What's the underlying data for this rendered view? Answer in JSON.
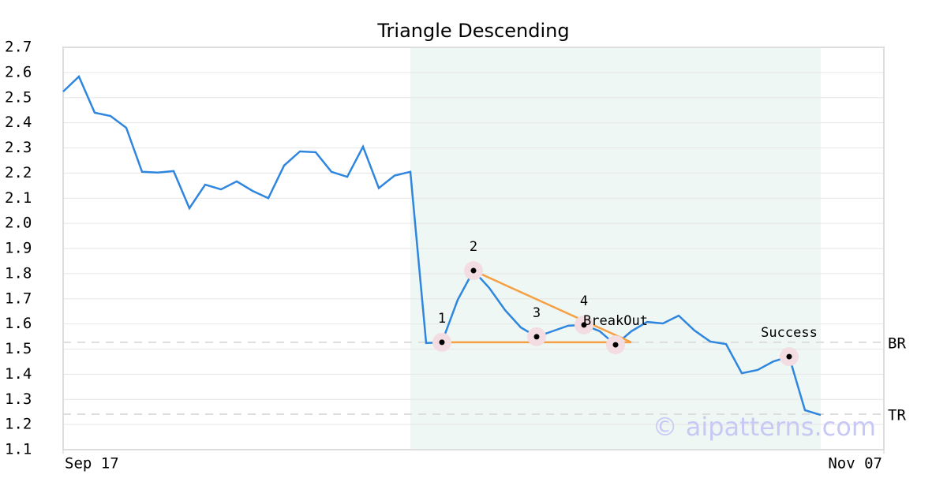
{
  "chart_data": {
    "type": "line",
    "title": "Triangle Descending",
    "x": [
      0,
      1,
      2,
      3,
      4,
      5,
      6,
      7,
      8,
      9,
      10,
      11,
      12,
      13,
      14,
      15,
      16,
      17,
      18,
      19,
      20,
      21,
      22,
      23,
      24,
      25,
      26,
      27,
      28,
      29,
      30,
      31,
      32,
      33,
      34,
      35,
      36,
      37,
      38,
      39,
      40,
      41,
      42,
      43,
      44,
      45,
      46,
      47,
      48
    ],
    "values": [
      2.524,
      2.584,
      2.44,
      2.427,
      2.38,
      2.205,
      2.202,
      2.208,
      2.06,
      2.154,
      2.135,
      2.167,
      2.129,
      2.1,
      2.23,
      2.286,
      2.283,
      2.205,
      2.185,
      2.305,
      2.14,
      2.19,
      2.205,
      1.524,
      1.527,
      1.696,
      1.812,
      1.743,
      1.655,
      1.586,
      1.549,
      1.571,
      1.593,
      1.596,
      1.571,
      1.517,
      1.571,
      1.608,
      1.602,
      1.633,
      1.574,
      1.53,
      1.52,
      1.404,
      1.417,
      1.451,
      1.47,
      1.257,
      1.238
    ],
    "color": "#2e86de",
    "xlim": [
      0,
      52
    ],
    "xticks": [
      {
        "value": 0,
        "label": "Sep 17"
      },
      {
        "value": 52,
        "label": "Nov 07"
      }
    ],
    "ylim": [
      1.1,
      2.7
    ],
    "yticks": [
      1.1,
      1.2,
      1.3,
      1.4,
      1.5,
      1.6,
      1.7,
      1.8,
      1.9,
      {
        "value": 2,
        "label": "2.0"
      },
      2.1,
      2.2,
      2.3,
      2.4,
      2.5,
      2.6,
      2.7
    ],
    "grid": true,
    "shade": [
      22,
      48
    ],
    "shade_color": "#eef7f3",
    "annotations": [
      {
        "index": 24,
        "label": "1"
      },
      {
        "index": 26,
        "label": "2"
      },
      {
        "index": 30,
        "label": "3"
      },
      {
        "index": 33,
        "label": "4"
      },
      {
        "index": 35,
        "label": "BreakOut"
      },
      {
        "index": 46,
        "label": "Success"
      }
    ],
    "pattern_color": "#f5a044",
    "pattern_lines": [
      {
        "x": [
          24,
          36
        ],
        "y": [
          1.527,
          1.527
        ]
      },
      {
        "x": [
          26,
          36
        ],
        "y": [
          1.812,
          1.527
        ]
      }
    ],
    "hlines": [
      {
        "value": 1.527,
        "label": "BR"
      },
      {
        "value": 1.241,
        "label": "TR"
      }
    ],
    "watermark": "© aipatterns.com"
  }
}
